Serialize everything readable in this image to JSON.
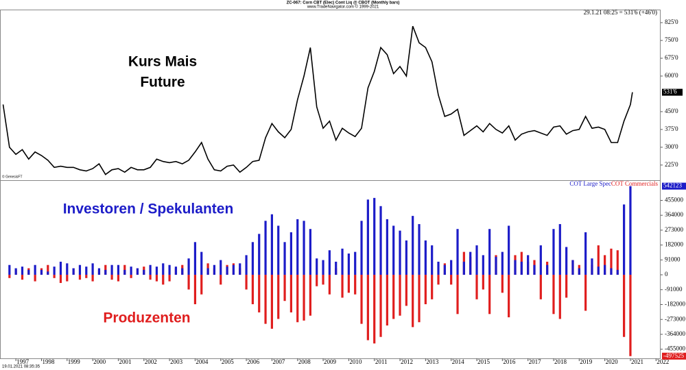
{
  "header": {
    "title": "ZC-067: Corn CBT (Elec) Cont Liq @ CBOT  (Monthly bars)",
    "subtitle": "www.TradeNavigator.com © 1999-2021",
    "quote": "29.1.21 08:25 = 531'6 (+46'0)",
    "credit": "© GenesisFT",
    "timestamp": "19.01.2021 08:35:35"
  },
  "chart_data": [
    {
      "type": "line",
      "name": "Kurs Mais Future",
      "annotation": [
        "Kurs Mais",
        "Future"
      ],
      "color": "#000000",
      "x": [
        1996.5,
        1996.75,
        1997,
        1997.25,
        1997.5,
        1997.75,
        1998,
        1998.25,
        1998.5,
        1998.75,
        1999,
        1999.25,
        1999.5,
        1999.75,
        2000,
        2000.25,
        2000.5,
        2000.75,
        2001,
        2001.25,
        2001.5,
        2001.75,
        2002,
        2002.25,
        2002.5,
        2002.75,
        2003,
        2003.25,
        2003.5,
        2003.75,
        2004,
        2004.25,
        2004.5,
        2004.75,
        2005,
        2005.25,
        2005.5,
        2005.75,
        2006,
        2006.25,
        2006.5,
        2006.75,
        2007,
        2007.25,
        2007.5,
        2007.75,
        2008,
        2008.25,
        2008.5,
        2008.75,
        2009,
        2009.25,
        2009.5,
        2009.75,
        2010,
        2010.25,
        2010.5,
        2010.75,
        2011,
        2011.25,
        2011.5,
        2011.75,
        2012,
        2012.25,
        2012.5,
        2012.75,
        2013,
        2013.25,
        2013.5,
        2013.75,
        2014,
        2014.25,
        2014.5,
        2014.75,
        2015,
        2015.25,
        2015.5,
        2015.75,
        2016,
        2016.25,
        2016.5,
        2016.75,
        2017,
        2017.25,
        2017.5,
        2017.75,
        2018,
        2018.25,
        2018.5,
        2018.75,
        2019,
        2019.25,
        2019.5,
        2019.75,
        2020,
        2020.25,
        2020.5,
        2020.75,
        2021,
        2021.08
      ],
      "values": [
        480,
        300,
        270,
        290,
        250,
        280,
        265,
        245,
        215,
        220,
        215,
        215,
        205,
        200,
        210,
        230,
        185,
        205,
        210,
        195,
        215,
        205,
        205,
        215,
        250,
        240,
        235,
        240,
        230,
        245,
        280,
        320,
        250,
        205,
        200,
        220,
        225,
        195,
        215,
        240,
        245,
        340,
        400,
        365,
        340,
        375,
        500,
        600,
        720,
        470,
        380,
        410,
        330,
        380,
        360,
        345,
        380,
        550,
        620,
        720,
        690,
        610,
        640,
        600,
        810,
        740,
        720,
        660,
        520,
        430,
        440,
        460,
        350,
        370,
        390,
        365,
        400,
        375,
        360,
        390,
        330,
        355,
        365,
        370,
        360,
        350,
        385,
        390,
        355,
        370,
        375,
        430,
        380,
        385,
        375,
        320,
        320,
        410,
        480,
        531.75
      ],
      "value_labels": [
        null,
        null,
        null,
        null,
        null,
        null,
        null,
        null,
        null,
        null,
        null,
        null,
        null,
        null,
        null,
        null,
        null,
        null,
        null,
        null,
        null,
        null,
        null,
        null,
        null,
        null,
        null,
        null,
        null,
        null,
        null,
        null,
        null,
        null,
        null,
        null,
        null,
        null,
        null,
        null,
        null,
        null,
        null,
        null,
        null,
        null,
        null,
        null,
        null,
        null,
        null,
        null,
        null,
        null,
        null,
        null,
        null,
        null,
        null,
        null,
        null,
        null,
        null,
        null,
        null,
        null,
        null,
        null,
        null,
        null,
        null,
        null,
        null,
        null,
        null,
        null,
        null,
        null,
        null,
        null,
        null,
        null,
        null,
        null,
        null,
        null,
        null,
        null,
        null,
        null,
        null,
        null,
        null,
        null,
        null,
        null,
        null,
        null,
        null,
        "531'6"
      ],
      "xlim": [
        1996.38,
        2022.18
      ],
      "ylim": [
        164,
        880
      ],
      "yticks": [
        {
          "value": 225,
          "label": "225'0"
        },
        {
          "value": 300,
          "label": "300'0"
        },
        {
          "value": 375,
          "label": "375'0"
        },
        {
          "value": 450,
          "label": "450'0"
        },
        {
          "value": 600,
          "label": "600'0"
        },
        {
          "value": 675,
          "label": "675'0"
        },
        {
          "value": 750,
          "label": "750'0"
        },
        {
          "value": 825,
          "label": "825'0"
        }
      ]
    },
    {
      "type": "bar",
      "annotations": [
        "Investoren / Spekulanten",
        "Produzenten"
      ],
      "x": [
        1996.75,
        1997,
        1997.25,
        1997.5,
        1997.75,
        1998,
        1998.25,
        1998.5,
        1998.75,
        1999,
        1999.25,
        1999.5,
        1999.75,
        2000,
        2000.25,
        2000.5,
        2000.75,
        2001,
        2001.25,
        2001.5,
        2001.75,
        2002,
        2002.25,
        2002.5,
        2002.75,
        2003,
        2003.25,
        2003.5,
        2003.75,
        2004,
        2004.25,
        2004.5,
        2004.75,
        2005,
        2005.25,
        2005.5,
        2005.75,
        2006,
        2006.25,
        2006.5,
        2006.75,
        2007,
        2007.25,
        2007.5,
        2007.75,
        2008,
        2008.25,
        2008.5,
        2008.75,
        2009,
        2009.25,
        2009.5,
        2009.75,
        2010,
        2010.25,
        2010.5,
        2010.75,
        2011,
        2011.25,
        2011.5,
        2011.75,
        2012,
        2012.25,
        2012.5,
        2012.75,
        2013,
        2013.25,
        2013.5,
        2013.75,
        2014,
        2014.25,
        2014.5,
        2014.75,
        2015,
        2015.25,
        2015.5,
        2015.75,
        2016,
        2016.25,
        2016.5,
        2016.75,
        2017,
        2017.25,
        2017.5,
        2017.75,
        2018,
        2018.25,
        2018.5,
        2018.75,
        2019,
        2019.25,
        2019.5,
        2019.75,
        2020,
        2020.25,
        2020.5,
        2020.75,
        2021
      ],
      "series": [
        {
          "name": "COT Large Spec",
          "color": "#1c1cc8",
          "values": [
            60000,
            40000,
            50000,
            30000,
            60000,
            30000,
            20000,
            50000,
            80000,
            70000,
            40000,
            60000,
            50000,
            70000,
            40000,
            30000,
            60000,
            60000,
            30000,
            50000,
            40000,
            30000,
            60000,
            50000,
            70000,
            60000,
            50000,
            40000,
            100000,
            200000,
            140000,
            40000,
            60000,
            90000,
            50000,
            60000,
            70000,
            120000,
            200000,
            250000,
            330000,
            370000,
            300000,
            200000,
            260000,
            340000,
            330000,
            280000,
            100000,
            90000,
            150000,
            80000,
            160000,
            130000,
            140000,
            330000,
            460000,
            470000,
            420000,
            340000,
            300000,
            270000,
            210000,
            360000,
            310000,
            210000,
            180000,
            80000,
            60000,
            90000,
            280000,
            80000,
            140000,
            180000,
            120000,
            280000,
            110000,
            140000,
            300000,
            90000,
            80000,
            120000,
            60000,
            180000,
            60000,
            280000,
            310000,
            170000,
            90000,
            40000,
            260000,
            100000,
            50000,
            60000,
            40000,
            30000,
            430000,
            542123
          ]
        },
        {
          "name": "COT Commercials",
          "color": "#e01e1e",
          "values": [
            -20000,
            30000,
            -30000,
            40000,
            -40000,
            40000,
            60000,
            -20000,
            -50000,
            -40000,
            40000,
            -30000,
            -20000,
            -40000,
            30000,
            60000,
            -30000,
            -40000,
            60000,
            -20000,
            40000,
            50000,
            -30000,
            -40000,
            -60000,
            -40000,
            40000,
            60000,
            -90000,
            -180000,
            -120000,
            70000,
            40000,
            -60000,
            60000,
            70000,
            40000,
            -90000,
            -180000,
            -230000,
            -300000,
            -330000,
            -270000,
            -160000,
            -230000,
            -290000,
            -280000,
            -250000,
            -70000,
            -60000,
            -120000,
            40000,
            -140000,
            -110000,
            -120000,
            -300000,
            -400000,
            -420000,
            -380000,
            -310000,
            -270000,
            -250000,
            -190000,
            -320000,
            -290000,
            -180000,
            -150000,
            -60000,
            70000,
            -60000,
            -240000,
            140000,
            110000,
            -150000,
            -90000,
            -240000,
            120000,
            -110000,
            -260000,
            120000,
            140000,
            80000,
            90000,
            -150000,
            80000,
            -240000,
            -270000,
            -140000,
            90000,
            60000,
            -220000,
            60000,
            180000,
            120000,
            160000,
            150000,
            -380000,
            -497525
          ]
        }
      ],
      "xlim": [
        1996.38,
        2022.18
      ],
      "ylim": [
        -511000,
        570000
      ],
      "xticks": [
        1997,
        1998,
        1999,
        2000,
        2001,
        2002,
        2003,
        2004,
        2005,
        2006,
        2007,
        2008,
        2009,
        2010,
        2011,
        2012,
        2013,
        2014,
        2015,
        2016,
        2017,
        2018,
        2019,
        2020,
        2021,
        2022
      ],
      "yticks": [
        -455000,
        -364000,
        -273000,
        -182000,
        -91000,
        0,
        91000,
        182000,
        273000,
        364000,
        455000
      ]
    }
  ]
}
